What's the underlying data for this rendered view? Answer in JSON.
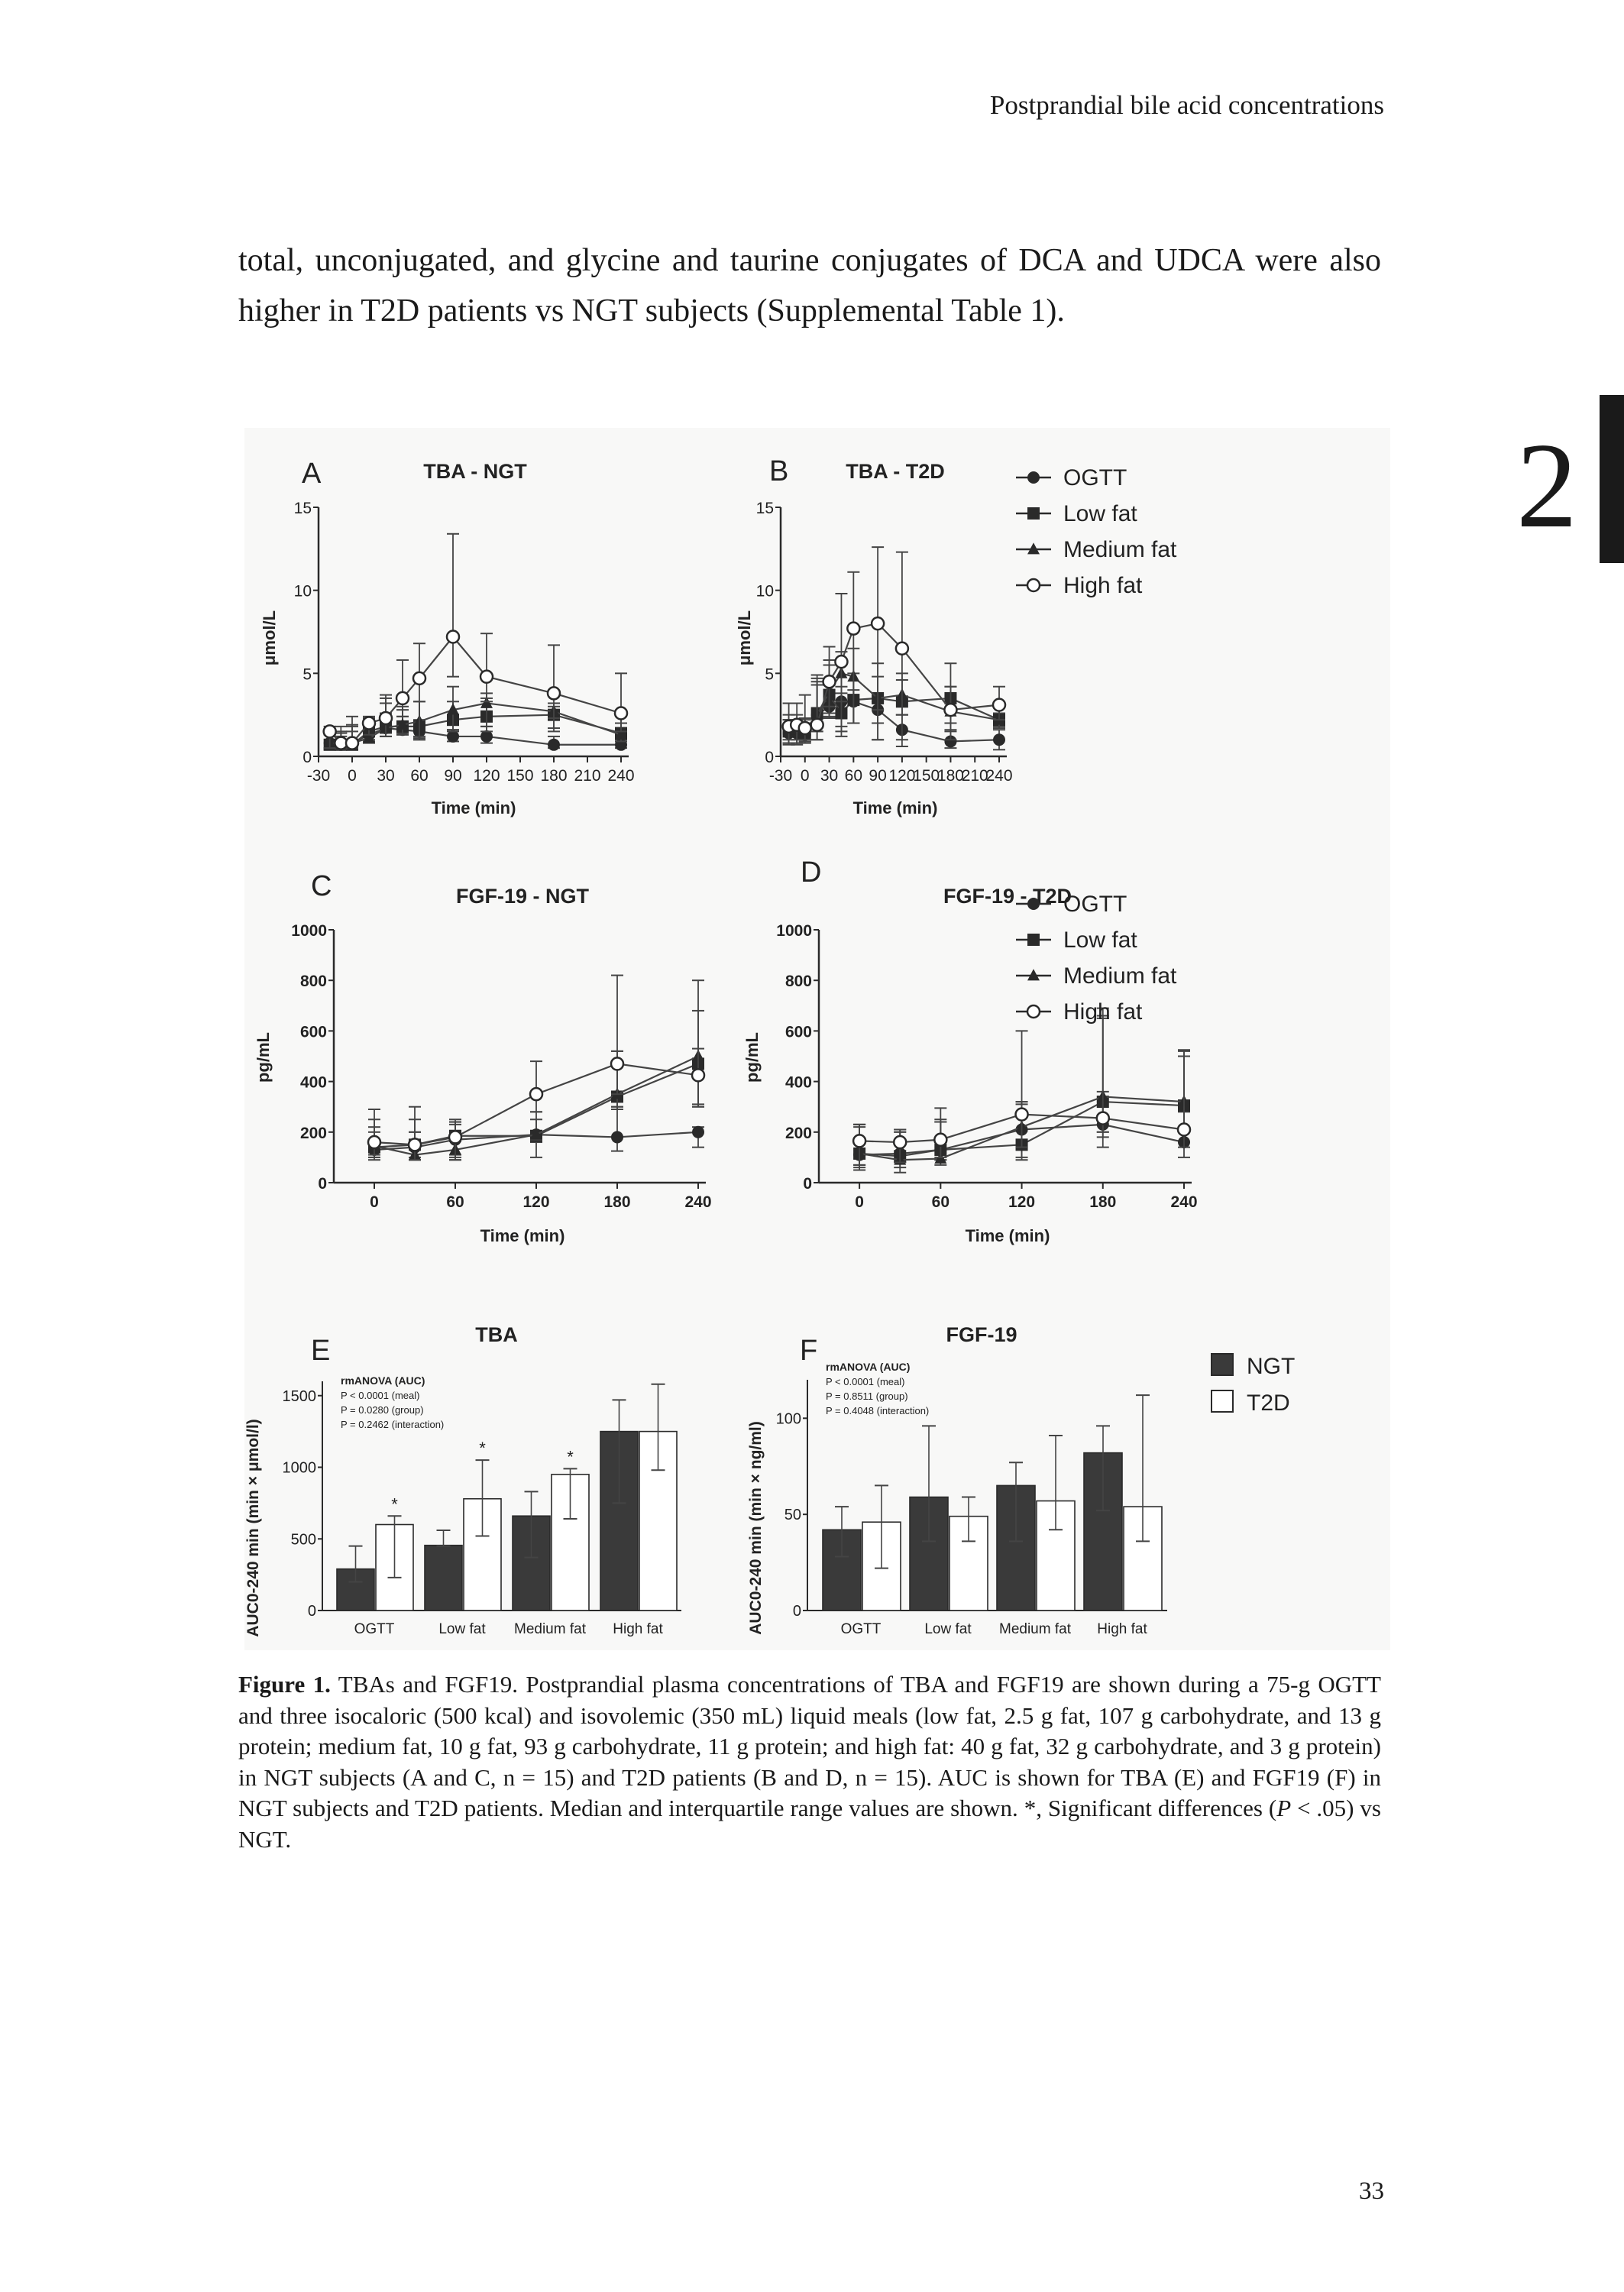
{
  "header": {
    "running_title": "Postprandial bile acid concentrations"
  },
  "body_text": "total, unconjugated, and glycine and taurine conjugates of DCA and UDCA were also higher in T2D patients vs NGT subjects (Supplemental Table 1).",
  "chapter_tab": "2",
  "caption": {
    "label": "Figure 1.",
    "text_1": " TBAs and FGF19. Postprandial plasma concentrations of TBA and FGF19 are shown during a 75-g OGTT and three isocaloric (500 kcal) and isovolemic (350 mL) liquid meals (low fat, 2.5 g fat, 107 g carbohydrate, and 13 g protein; medium fat, 10 g fat, 93 g carbohydrate, 11 g protein; and high fat: 40 g fat, 32 g carbohydrate, and 3 g protein) in NGT subjects (A and C, n = 15) and T2D patients (B and D, n = 15). AUC is shown for TBA (E) and FGF19 (F) in NGT subjects and T2D patients. Median and interquartile range values are shown. *, Significant differences (",
    "p_italic": "P",
    "text_2": " < .05) vs NGT."
  },
  "page_number": "33",
  "legend_lines": [
    {
      "name": "OGTT",
      "marker": "filled-circle"
    },
    {
      "name": "Low fat",
      "marker": "filled-square"
    },
    {
      "name": "Medium fat",
      "marker": "filled-triangle"
    },
    {
      "name": "High fat",
      "marker": "open-circle"
    }
  ],
  "legend_bars": [
    {
      "name": "NGT",
      "color": "#3a3a3a"
    },
    {
      "name": "T2D",
      "color": "#ffffff"
    }
  ],
  "chart_data": [
    {
      "panel": "A",
      "type": "line",
      "title": "TBA - NGT",
      "xlabel": "Time (min)",
      "ylabel": "μmol/L",
      "xlim": [
        -30,
        240
      ],
      "ylim": [
        0,
        15
      ],
      "xticks": [
        -30,
        0,
        30,
        60,
        90,
        120,
        150,
        180,
        210,
        240
      ],
      "yticks": [
        0,
        5,
        10,
        15
      ],
      "x": [
        -20,
        -10,
        0,
        15,
        30,
        45,
        60,
        90,
        120,
        180,
        240
      ],
      "series": [
        {
          "name": "OGTT",
          "values": [
            0.8,
            0.7,
            0.8,
            1.3,
            1.7,
            1.6,
            1.5,
            1.2,
            1.2,
            0.7,
            0.7
          ],
          "q1": [
            0.5,
            0.5,
            0.5,
            0.9,
            1.2,
            1.3,
            1.0,
            0.9,
            0.8,
            0.5,
            0.5
          ],
          "q3": [
            1.3,
            1.2,
            1.5,
            2.0,
            2.6,
            2.4,
            2.2,
            1.6,
            1.8,
            1.2,
            1.0
          ]
        },
        {
          "name": "Low fat",
          "values": [
            0.7,
            0.7,
            0.7,
            1.5,
            1.8,
            1.8,
            1.8,
            2.2,
            2.4,
            2.5,
            1.4
          ],
          "q1": [
            0.4,
            0.4,
            0.5,
            1.0,
            1.4,
            1.4,
            1.2,
            1.6,
            1.5,
            1.7,
            0.9
          ],
          "q3": [
            1.6,
            1.4,
            1.8,
            2.3,
            3.2,
            2.8,
            3.3,
            3.3,
            3.5,
            3.2,
            2.0
          ]
        },
        {
          "name": "Medium fat",
          "values": [
            0.8,
            0.7,
            0.8,
            1.1,
            1.7,
            1.9,
            2.1,
            2.8,
            3.2,
            2.7,
            1.3
          ],
          "q1": [
            0.5,
            0.4,
            0.5,
            0.8,
            1.2,
            1.3,
            1.1,
            1.5,
            1.8,
            1.5,
            0.9
          ],
          "q3": [
            1.5,
            1.5,
            1.9,
            2.2,
            3.5,
            3.0,
            3.3,
            4.2,
            3.8,
            3.0,
            2.4
          ]
        },
        {
          "name": "High fat",
          "values": [
            1.5,
            0.8,
            0.8,
            2.0,
            2.3,
            3.5,
            4.7,
            7.2,
            4.8,
            3.8,
            2.6
          ],
          "q1": [
            0.5,
            0.5,
            0.5,
            1.3,
            1.2,
            2.4,
            1.0,
            4.8,
            3.3,
            2.3,
            1.5
          ],
          "q3": [
            1.8,
            1.8,
            2.4,
            2.4,
            3.7,
            5.8,
            6.8,
            13.4,
            7.4,
            6.7,
            5.0
          ]
        }
      ]
    },
    {
      "panel": "B",
      "type": "line",
      "title": "TBA - T2D",
      "xlabel": "Time (min)",
      "ylabel": "μmol/L",
      "xlim": [
        -30,
        240
      ],
      "ylim": [
        0,
        15
      ],
      "xticks": [
        -30,
        0,
        30,
        60,
        90,
        120,
        150,
        180,
        210,
        240
      ],
      "yticks": [
        0,
        5,
        10,
        15
      ],
      "x": [
        -20,
        -10,
        0,
        15,
        30,
        45,
        60,
        90,
        120,
        180,
        240
      ],
      "series": [
        {
          "name": "OGTT",
          "values": [
            1.4,
            1.4,
            1.3,
            2.5,
            3.0,
            3.3,
            3.3,
            2.8,
            1.6,
            0.9,
            1.0
          ],
          "q1": [
            0.8,
            0.8,
            0.8,
            1.0,
            2.3,
            1.2,
            2.0,
            1.0,
            0.6,
            0.5,
            0.4
          ],
          "q3": [
            2.2,
            2.2,
            2.0,
            4.3,
            4.3,
            3.8,
            4.0,
            3.3,
            2.5,
            1.5,
            1.6
          ]
        },
        {
          "name": "Low fat",
          "values": [
            1.5,
            1.5,
            1.4,
            2.6,
            3.7,
            2.6,
            3.4,
            3.5,
            3.3,
            3.5,
            2.2
          ],
          "q1": [
            0.8,
            0.8,
            0.9,
            1.5,
            2.4,
            1.8,
            2.0,
            2.0,
            2.5,
            2.0,
            1.8
          ],
          "q3": [
            2.2,
            2.2,
            2.2,
            4.5,
            5.5,
            4.2,
            5.0,
            4.8,
            4.6,
            4.2,
            2.6
          ]
        },
        {
          "name": "Medium fat",
          "values": [
            1.6,
            1.6,
            1.5,
            2.5,
            3.9,
            5.0,
            4.8,
            3.5,
            3.7,
            2.7,
            2.2
          ],
          "q1": [
            0.7,
            0.7,
            0.9,
            1.5,
            2.6,
            3.3,
            2.0,
            2.8,
            2.5,
            1.6,
            1.7
          ],
          "q3": [
            2.5,
            2.5,
            2.3,
            4.7,
            5.8,
            6.3,
            6.5,
            5.6,
            5.0,
            4.2,
            3.0
          ]
        },
        {
          "name": "High fat",
          "values": [
            1.8,
            1.9,
            1.7,
            1.9,
            4.5,
            5.7,
            7.7,
            8.0,
            6.5,
            2.8,
            3.1
          ],
          "q1": [
            1.0,
            1.0,
            1.0,
            1.0,
            3.0,
            1.5,
            2.0,
            1.0,
            1.0,
            1.0,
            2.2
          ],
          "q3": [
            3.2,
            3.2,
            3.7,
            4.9,
            6.6,
            9.8,
            11.1,
            12.6,
            12.3,
            5.6,
            4.2
          ]
        }
      ]
    },
    {
      "panel": "C",
      "type": "line",
      "title": "FGF-19 - NGT",
      "xlabel": "Time (min)",
      "ylabel": "pg/mL",
      "xlim": [
        -30,
        240
      ],
      "ylim": [
        0,
        1000
      ],
      "xticks": [
        0,
        60,
        120,
        180,
        240
      ],
      "yticks": [
        0,
        200,
        400,
        600,
        800,
        1000
      ],
      "x": [
        0,
        30,
        60,
        120,
        180,
        240
      ],
      "series": [
        {
          "name": "OGTT",
          "values": [
            130,
            140,
            170,
            190,
            180,
            200
          ],
          "q1": [
            90,
            90,
            90,
            100,
            125,
            140
          ],
          "q3": [
            200,
            200,
            240,
            190,
            300,
            220
          ]
        },
        {
          "name": "Low fat",
          "values": [
            140,
            150,
            185,
            185,
            340,
            470
          ],
          "q1": [
            100,
            100,
            110,
            160,
            300,
            300
          ],
          "q3": [
            250,
            250,
            240,
            280,
            520,
            530
          ]
        },
        {
          "name": "Medium fat",
          "values": [
            145,
            110,
            130,
            190,
            350,
            500
          ],
          "q1": [
            100,
            90,
            90,
            170,
            290,
            310
          ],
          "q3": [
            220,
            200,
            230,
            250,
            520,
            680
          ]
        },
        {
          "name": "High fat",
          "values": [
            160,
            150,
            180,
            350,
            470,
            425
          ],
          "q1": [
            110,
            90,
            100,
            280,
            350,
            300
          ],
          "q3": [
            290,
            300,
            250,
            480,
            820,
            800
          ]
        }
      ]
    },
    {
      "panel": "D",
      "type": "line",
      "title": "FGF-19 - T2D",
      "xlabel": "Time (min)",
      "ylabel": "pg/mL",
      "xlim": [
        -30,
        240
      ],
      "ylim": [
        0,
        1000
      ],
      "xticks": [
        0,
        60,
        120,
        180,
        240
      ],
      "yticks": [
        0,
        200,
        400,
        600,
        800,
        1000
      ],
      "x": [
        0,
        30,
        60,
        120,
        180,
        240
      ],
      "series": [
        {
          "name": "OGTT",
          "values": [
            110,
            115,
            130,
            210,
            230,
            160
          ],
          "q1": [
            70,
            80,
            90,
            100,
            200,
            100
          ],
          "q3": [
            230,
            200,
            240,
            320,
            360,
            280
          ]
        },
        {
          "name": "Low fat",
          "values": [
            115,
            105,
            130,
            150,
            320,
            305
          ],
          "q1": [
            60,
            60,
            90,
            90,
            140,
            200
          ],
          "q3": [
            230,
            210,
            240,
            310,
            650,
            500
          ]
        },
        {
          "name": "Medium fat",
          "values": [
            115,
            90,
            95,
            220,
            340,
            320
          ],
          "q1": [
            50,
            40,
            70,
            140,
            180,
            220
          ],
          "q3": [
            220,
            200,
            250,
            320,
            660,
            520
          ]
        },
        {
          "name": "High fat",
          "values": [
            165,
            160,
            170,
            270,
            255,
            210
          ],
          "q1": [
            70,
            80,
            100,
            140,
            200,
            140
          ],
          "q3": [
            230,
            210,
            295,
            600,
            690,
            525
          ]
        }
      ]
    },
    {
      "panel": "E",
      "type": "bar",
      "title": "TBA",
      "ylabel": "AUC0-240 min (min × μmol/l)",
      "ylim": [
        0,
        1600
      ],
      "yticks": [
        0,
        500,
        1000,
        1500
      ],
      "categories": [
        "OGTT",
        "Low fat",
        "Medium fat",
        "High fat"
      ],
      "annotation": [
        "rmANOVA (AUC)",
        "P < 0.0001 (meal)",
        "P = 0.0280 (group)",
        "P = 0.2462 (interaction)"
      ],
      "significance_marker": "*",
      "series": [
        {
          "name": "NGT",
          "values": [
            290,
            455,
            660,
            1250
          ],
          "q1": [
            200,
            450,
            370,
            750
          ],
          "q3": [
            450,
            560,
            830,
            1470
          ],
          "sig": [
            false,
            false,
            false,
            false
          ]
        },
        {
          "name": "T2D",
          "values": [
            600,
            780,
            950,
            1250
          ],
          "q1": [
            230,
            520,
            640,
            980
          ],
          "q3": [
            660,
            1050,
            990,
            1580
          ],
          "sig": [
            true,
            true,
            true,
            false
          ]
        }
      ]
    },
    {
      "panel": "F",
      "type": "bar",
      "title": "FGF-19",
      "ylabel": "AUC0-240 min (min × ng/ml)",
      "ylim": [
        0,
        120
      ],
      "yticks": [
        0,
        50,
        100
      ],
      "categories": [
        "OGTT",
        "Low fat",
        "Medium fat",
        "High fat"
      ],
      "annotation": [
        "rmANOVA (AUC)",
        "P < 0.0001 (meal)",
        "P = 0.8511 (group)",
        "P = 0.4048 (interaction)"
      ],
      "significance_marker": "*",
      "series": [
        {
          "name": "NGT",
          "values": [
            42,
            59,
            65,
            82
          ],
          "q1": [
            28,
            36,
            36,
            52
          ],
          "q3": [
            54,
            96,
            77,
            96
          ],
          "sig": [
            false,
            false,
            false,
            false
          ]
        },
        {
          "name": "T2D",
          "values": [
            46,
            49,
            57,
            54
          ],
          "q1": [
            22,
            36,
            42,
            36
          ],
          "q3": [
            65,
            59,
            91,
            112
          ],
          "sig": [
            false,
            false,
            false,
            false
          ]
        }
      ]
    }
  ]
}
